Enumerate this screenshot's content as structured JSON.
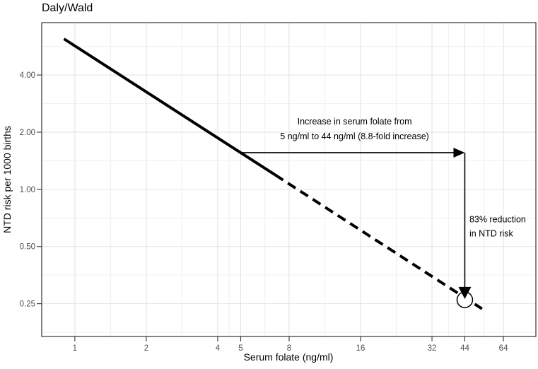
{
  "chart_data": {
    "type": "line",
    "title": "Daly/Wald",
    "xlabel": "Serum folate (ng/ml)",
    "ylabel": "NTD risk per 1000 births",
    "x_scale": "log2",
    "y_scale": "log2",
    "grid": true,
    "legend": false,
    "x_range": [
      0.725,
      87.7
    ],
    "y_range": [
      0.168,
      7.55
    ],
    "x_tick_values": [
      1,
      2,
      4,
      5,
      8,
      16,
      32,
      44,
      64
    ],
    "x_tick_labels": [
      "1",
      "2",
      "4",
      "5",
      "8",
      "16",
      "32",
      "44",
      "64"
    ],
    "y_tick_values": [
      4,
      2,
      1,
      0.5,
      0.25
    ],
    "y_tick_labels": [
      "4.00",
      "2.00",
      "1.00",
      "0.50",
      "0.25"
    ],
    "x_minor_values": [
      1.414,
      2.828,
      4.472,
      6.325,
      11.314,
      22.627,
      37.53,
      53.08
    ],
    "y_minor_values": [
      5.657,
      2.828,
      1.414,
      0.707,
      0.354,
      0.177
    ],
    "series": [
      {
        "name": "risk-line-observed",
        "style": "solid",
        "width": 4,
        "color": "#000000",
        "points": [
          [
            0.9,
            6.2
          ],
          [
            7.0,
            1.19
          ]
        ]
      },
      {
        "name": "risk-line-extrapolated",
        "style": "dashed",
        "width": 4,
        "color": "#000000",
        "points": [
          [
            7.0,
            1.19
          ],
          [
            52.0,
            0.235
          ]
        ]
      }
    ],
    "annotations": {
      "arrows": [
        {
          "name": "folate-increase-arrow",
          "direction": "right",
          "from": [
            5,
            1.56
          ],
          "to": [
            44,
            1.56
          ]
        },
        {
          "name": "risk-reduction-arrow",
          "direction": "down",
          "from": [
            44,
            1.56
          ],
          "to": [
            44,
            0.265
          ]
        }
      ],
      "marker": {
        "name": "endpoint-marker",
        "shape": "open-circle",
        "x": 44,
        "y": 0.262,
        "radius_px": 11
      },
      "texts": [
        {
          "text": "Increase in serum folate from",
          "x": 15.1,
          "y": 2.27,
          "anchor": "middle"
        },
        {
          "text": "5 ng/ml to 44 ng/ml (8.8-fold increase)",
          "x": 15.1,
          "y": 1.9,
          "anchor": "middle"
        },
        {
          "text": "83% reduction",
          "x": 46,
          "y": 0.695,
          "anchor": "start"
        },
        {
          "text": "in NTD risk",
          "x": 46,
          "y": 0.585,
          "anchor": "start"
        }
      ]
    },
    "colors": {
      "line": "#000000",
      "grid_major": "#e2e2e2",
      "grid_minor": "#f0f0f0",
      "panel_border": "#333333",
      "tick_mark": "#333333",
      "tick_label": "#4d4d4d",
      "axis_title": "#000000",
      "title": "#000000",
      "annotation_text": "#000000",
      "panel_background": "#ffffff"
    }
  }
}
